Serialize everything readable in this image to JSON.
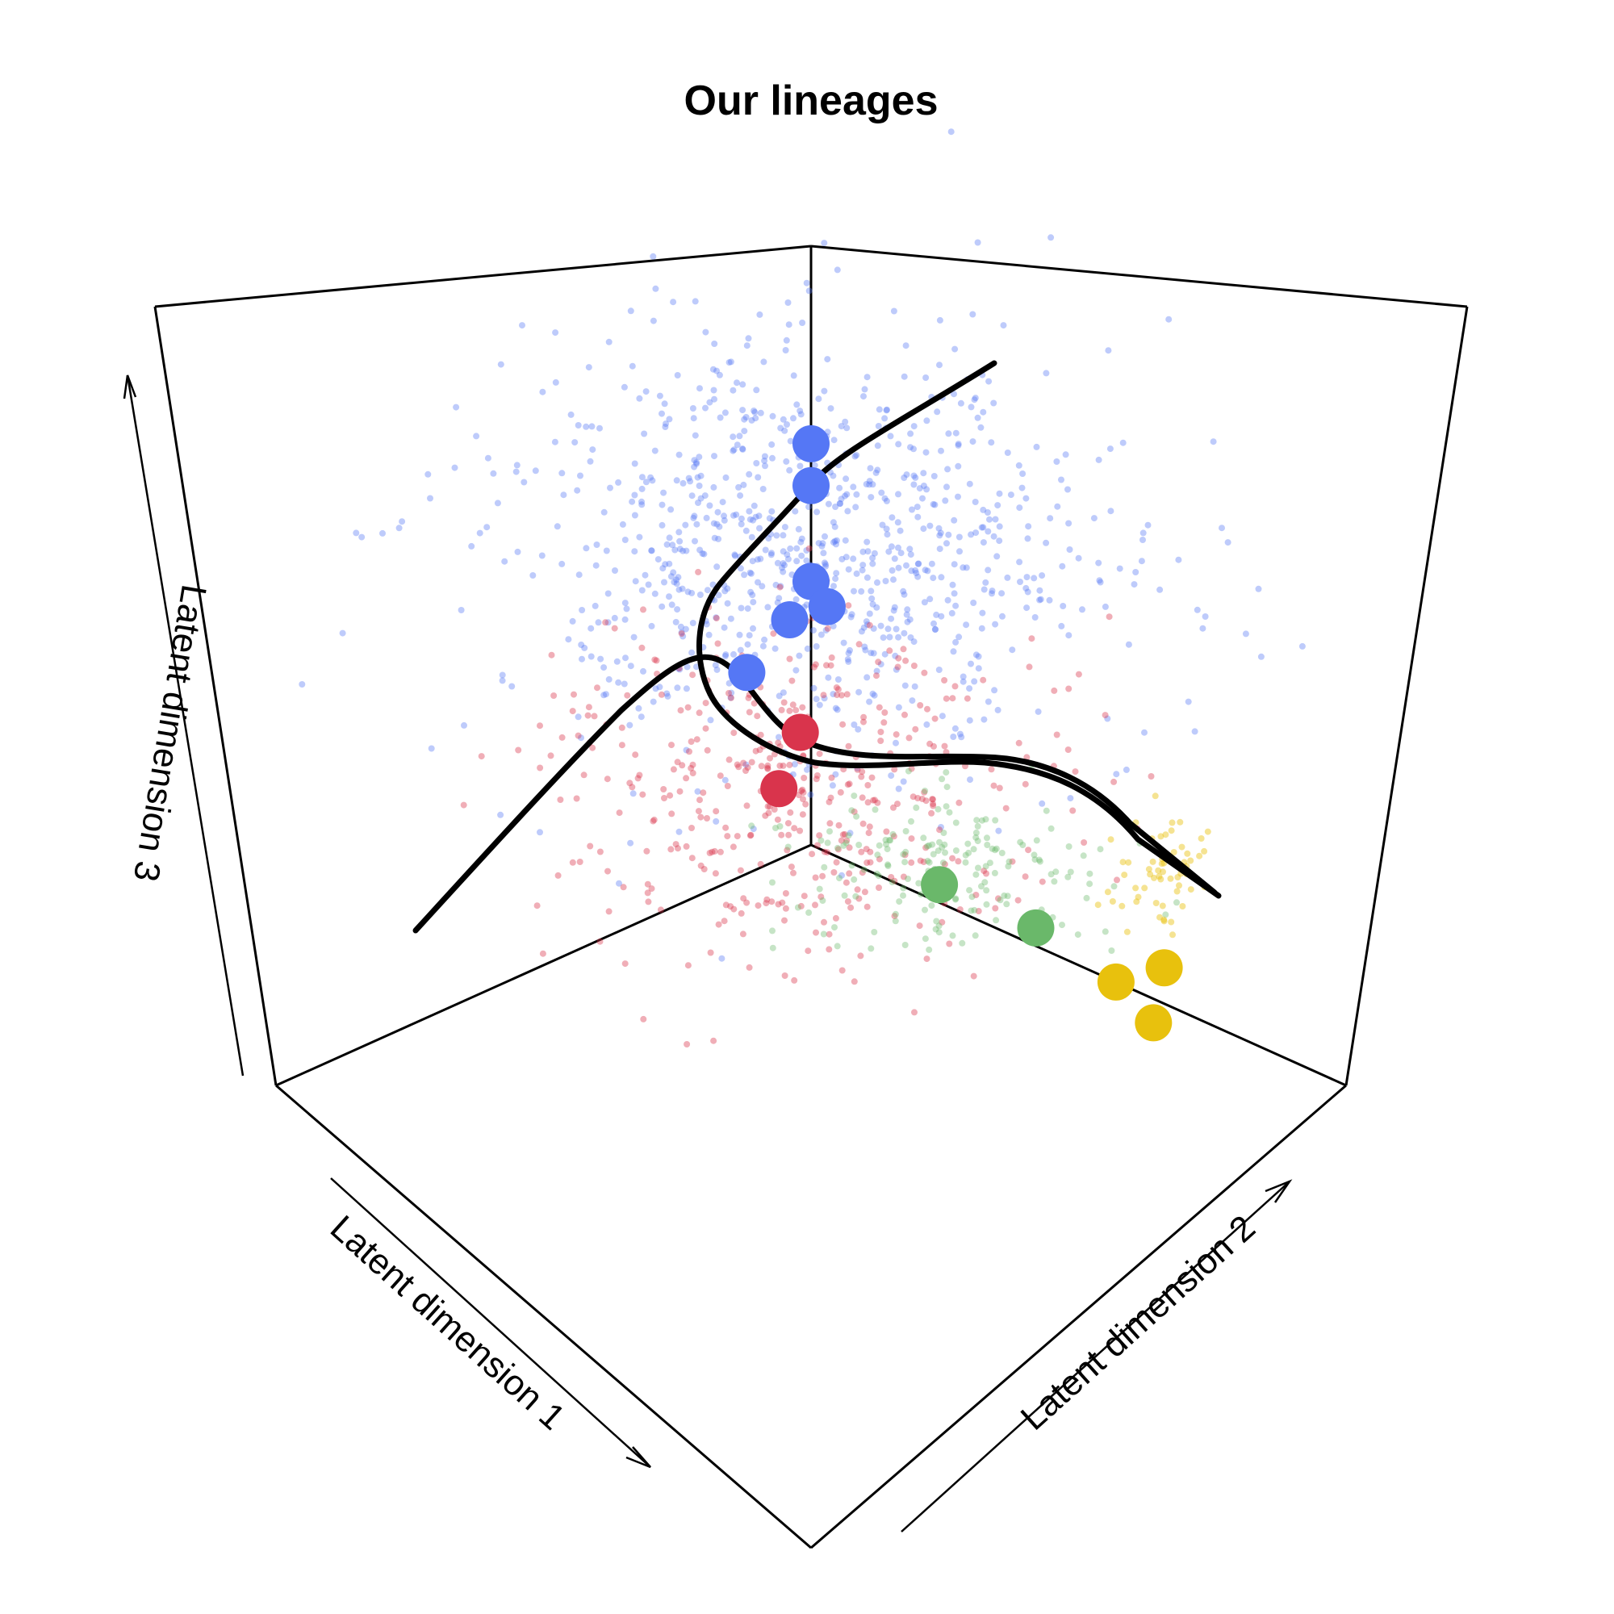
{
  "chart_data": {
    "type": "scatter",
    "title": "Our lineages",
    "xlabel": "Latent dimension 1",
    "ylabel": "Latent dimension 2",
    "zlabel": "Latent dimension 3",
    "grid": false,
    "legend": "none",
    "colors": {
      "blue": "#5577f5",
      "red": "#d9344c",
      "green": "#6ab86a",
      "yellow": "#e8c10d",
      "curve": "#000000"
    },
    "cells": [
      {
        "cluster": "blue",
        "count": 900
      },
      {
        "cluster": "red",
        "count": 450
      },
      {
        "cluster": "green",
        "count": 180
      },
      {
        "cluster": "yellow",
        "count": 60
      }
    ],
    "cluster_centers": [
      {
        "cluster": "blue",
        "x": 0.0,
        "y": 0.0,
        "z": 0.67
      },
      {
        "cluster": "blue",
        "x": 0.0,
        "y": 0.0,
        "z": 0.6
      },
      {
        "cluster": "blue",
        "x": 0.0,
        "y": 0.0,
        "z": 0.44
      },
      {
        "cluster": "blue",
        "x": 0.0,
        "y": 0.03,
        "z": 0.41
      },
      {
        "cluster": "blue",
        "x": 0.0,
        "y": -0.04,
        "z": 0.36
      },
      {
        "cluster": "blue",
        "x": 0.0,
        "y": -0.12,
        "z": 0.24
      },
      {
        "cluster": "red",
        "x": 0.0,
        "y": -0.02,
        "z": 0.18
      },
      {
        "cluster": "red",
        "x": 0.0,
        "y": -0.06,
        "z": 0.07
      },
      {
        "cluster": "green",
        "x": 0.0,
        "y": 0.24,
        "z": 0.03
      },
      {
        "cluster": "green",
        "x": 0.0,
        "y": 0.42,
        "z": 0.03
      },
      {
        "cluster": "yellow",
        "x": 0.0,
        "y": 0.66,
        "z": 0.06
      },
      {
        "cluster": "yellow",
        "x": 0.0,
        "y": 0.57,
        "z": 0.0
      },
      {
        "cluster": "yellow",
        "x": 0.0,
        "y": 0.64,
        "z": -0.04
      }
    ]
  }
}
